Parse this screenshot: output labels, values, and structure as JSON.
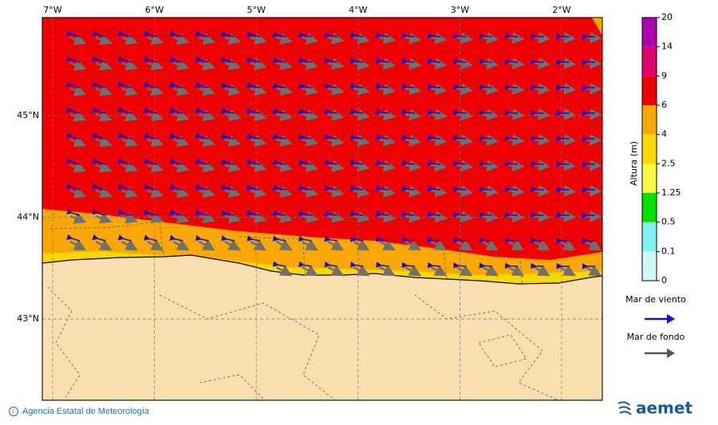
{
  "map": {
    "lon_labels": [
      "7°W",
      "6°W",
      "5°W",
      "4°W",
      "3°W",
      "2°W"
    ],
    "lat_labels": [
      "45°N",
      "44°N",
      "43°N"
    ],
    "colorbar": {
      "label": "Altura (m)",
      "ticks": [
        "20",
        "14",
        "9",
        "6",
        "4",
        "2.5",
        "1.25",
        "0.5",
        "0.1",
        "0"
      ]
    },
    "legend": [
      {
        "label": "Mar de viento"
      },
      {
        "label": "Mar de fondo"
      }
    ],
    "credit": "Agencia Estatal de Meteorología",
    "logo": "aemet"
  }
}
